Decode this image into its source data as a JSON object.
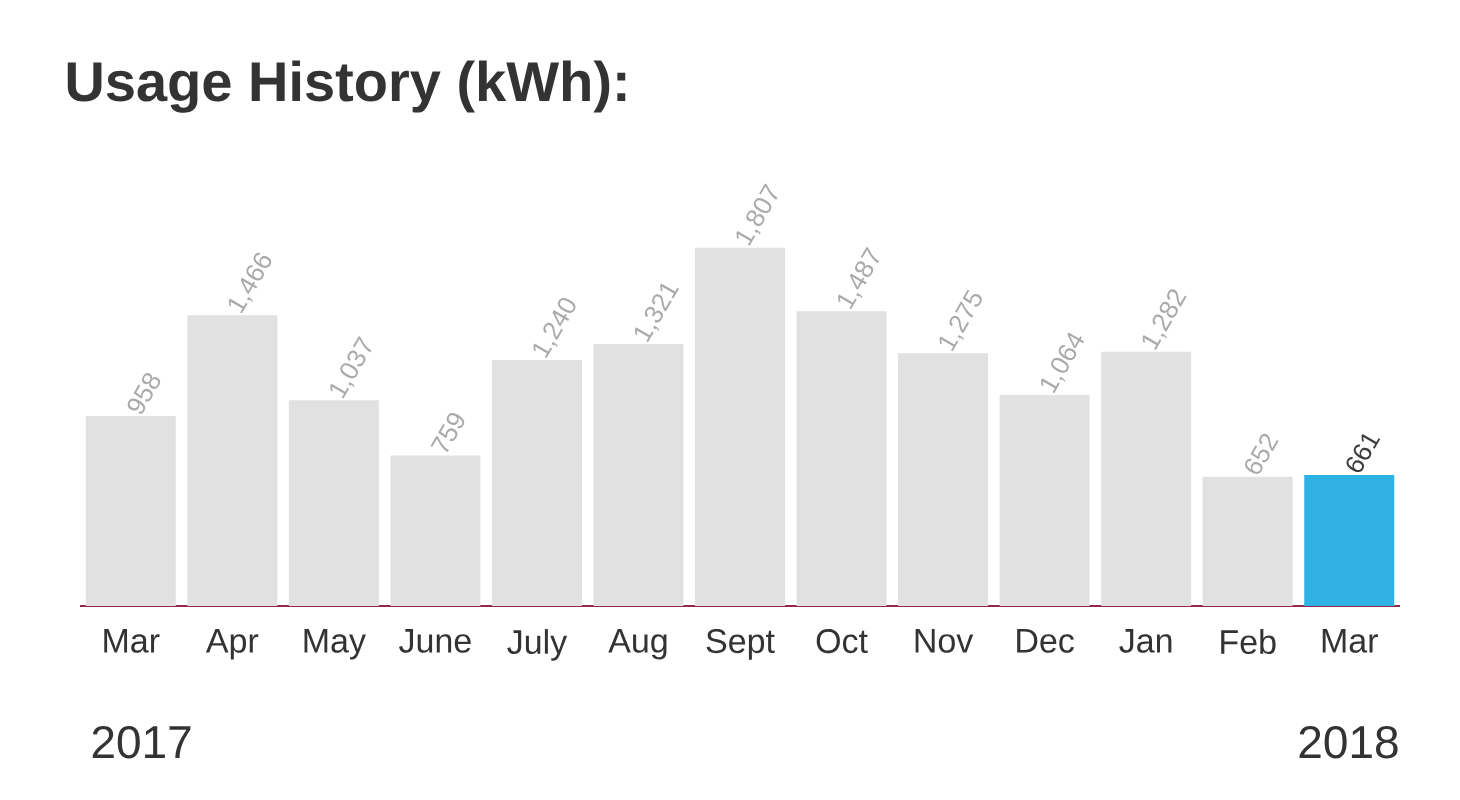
{
  "chart_data": {
    "type": "bar",
    "title": "Usage History (kWh):",
    "categories": [
      "Mar",
      "Apr",
      "May",
      "June",
      "July",
      "Aug",
      "Sept",
      "Oct",
      "Nov",
      "Dec",
      "Jan",
      "Feb",
      "Mar"
    ],
    "values": [
      958,
      1466,
      1037,
      759,
      1240,
      1321,
      1807,
      1487,
      1275,
      1064,
      1282,
      652,
      661
    ],
    "value_labels": [
      "958",
      "1,466",
      "1,037",
      "759",
      "1,240",
      "1,321",
      "1,807",
      "1,487",
      "1,275",
      "1,064",
      "1,282",
      "652",
      "661"
    ],
    "colors": [
      "#e1e1e1",
      "#e1e1e1",
      "#e1e1e1",
      "#e1e1e1",
      "#e1e1e1",
      "#e1e1e1",
      "#e1e1e1",
      "#e1e1e1",
      "#e1e1e1",
      "#e1e1e1",
      "#e1e1e1",
      "#e1e1e1",
      "#2fb1e3"
    ],
    "annotations": [
      "2017",
      "2018"
    ]
  }
}
